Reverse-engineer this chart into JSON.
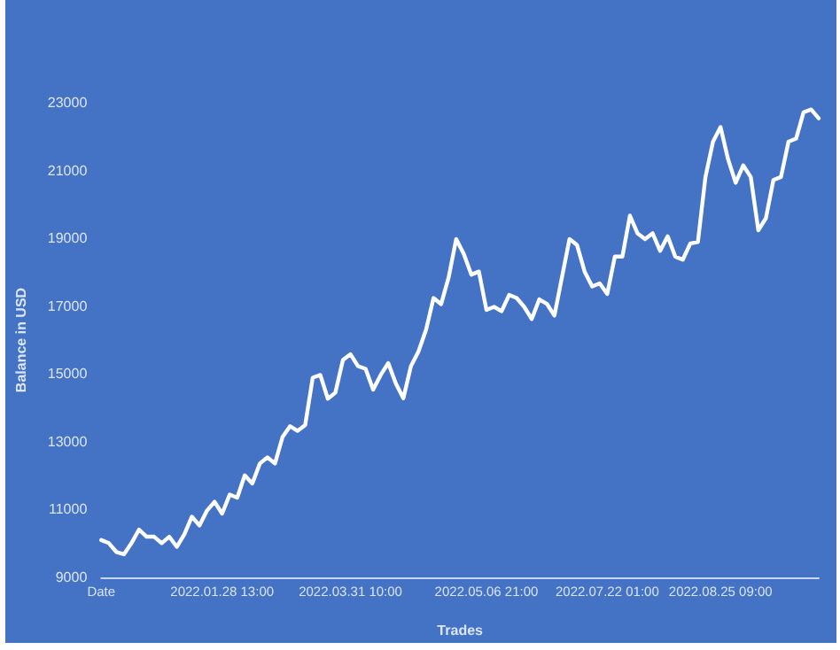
{
  "chart_data": {
    "type": "line",
    "xlabel": "Trades",
    "ylabel": "Balance in USD",
    "categories": [
      "Date",
      null,
      null,
      null,
      null,
      null,
      null,
      null,
      null,
      null,
      null,
      null,
      null,
      null,
      null,
      null,
      "2022.01.28 13:00",
      null,
      null,
      null,
      null,
      null,
      null,
      null,
      null,
      null,
      null,
      null,
      null,
      null,
      null,
      null,
      null,
      "2022.03.31 10:00",
      null,
      null,
      null,
      null,
      null,
      null,
      null,
      null,
      null,
      null,
      null,
      null,
      null,
      null,
      null,
      null,
      null,
      "2022.05.06 21:00",
      null,
      null,
      null,
      null,
      null,
      null,
      null,
      null,
      null,
      null,
      null,
      null,
      null,
      null,
      null,
      "2022.07.22 01:00",
      null,
      null,
      null,
      null,
      null,
      null,
      null,
      null,
      null,
      null,
      null,
      null,
      null,
      null,
      "2022.08.25 09:00",
      null,
      null,
      null,
      null,
      null,
      null,
      null,
      null,
      null,
      null,
      null,
      null,
      null
    ],
    "series": [
      {
        "color": "#ffffff",
        "values": [
          10100,
          10010,
          9750,
          9680,
          10010,
          10410,
          10200,
          10200,
          10010,
          10200,
          9900,
          10270,
          10790,
          10530,
          10970,
          11230,
          10880,
          11440,
          11350,
          12010,
          11770,
          12360,
          12540,
          12360,
          13140,
          13460,
          13320,
          13490,
          14890,
          14970,
          14270,
          14450,
          15410,
          15580,
          15230,
          15150,
          14540,
          14970,
          15320,
          14720,
          14280,
          15230,
          15660,
          16300,
          17240,
          17060,
          17850,
          18980,
          18540,
          17930,
          18020,
          16890,
          16980,
          16850,
          17330,
          17240,
          16980,
          16620,
          17200,
          17070,
          16720,
          17850,
          18980,
          18800,
          18020,
          17580,
          17670,
          17360,
          18460,
          18460,
          19670,
          19150,
          18980,
          19150,
          18630,
          19060,
          18460,
          18370,
          18850,
          18890,
          20810,
          21850,
          22280,
          21330,
          20640,
          21150,
          20810,
          19240,
          19590,
          20720,
          20810,
          21850,
          21940,
          22720,
          22800,
          22540
        ]
      }
    ],
    "ylim": [
      9000,
      23000
    ],
    "yticks": [
      9000,
      11000,
      13000,
      15000,
      17000,
      19000,
      21000,
      23000
    ],
    "grid": false,
    "marker": "none",
    "line_style": "solid"
  }
}
